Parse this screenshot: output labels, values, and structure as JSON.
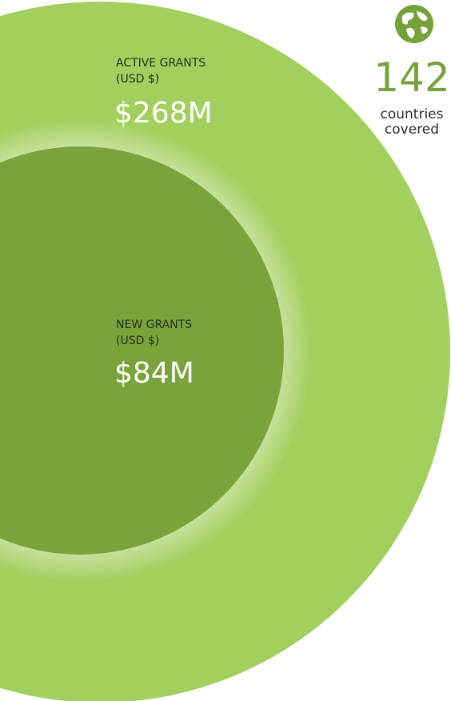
{
  "active_grants": {
    "label": "ACTIVE GRANTS",
    "unit": "(USD $)",
    "amount": "$268M"
  },
  "new_grants": {
    "label": "NEW GRANTS",
    "unit": "(USD $)",
    "amount": "$84M"
  },
  "countries": {
    "count": "142",
    "line1": "countries",
    "line2": "covered"
  }
}
